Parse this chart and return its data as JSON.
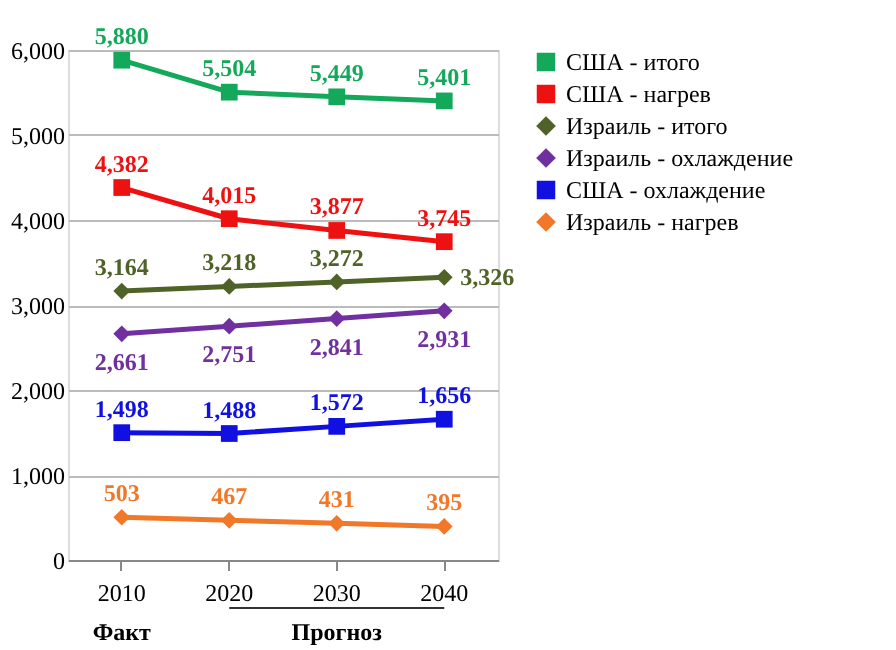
{
  "chart_data": {
    "type": "line",
    "categories": [
      "2010",
      "2020",
      "2030",
      "2040"
    ],
    "series": [
      {
        "name": "США - итого",
        "color": "#13a85a",
        "marker": "square",
        "values": [
          5880,
          5504,
          5449,
          5401
        ],
        "value_labels": [
          "5,880",
          "5,504",
          "5,449",
          "5,401"
        ]
      },
      {
        "name": "США - нагрев",
        "color": "#ee1111",
        "marker": "square",
        "values": [
          4382,
          4015,
          3877,
          3745
        ],
        "value_labels": [
          "4,382",
          "4,015",
          "3,877",
          "3,745"
        ]
      },
      {
        "name": "Израиль - итого",
        "color": "#4f6228",
        "marker": "diamond",
        "values": [
          3164,
          3218,
          3272,
          3326
        ],
        "value_labels": [
          "3,164",
          "3,218",
          "3,272",
          "3,326"
        ]
      },
      {
        "name": "Израиль - охлаждение",
        "color": "#7030a0",
        "marker": "diamond",
        "values": [
          2661,
          2751,
          2841,
          2931
        ],
        "value_labels": [
          "2,661",
          "2,751",
          "2,841",
          "2,931"
        ]
      },
      {
        "name": "США - охлаждение",
        "color": "#1010e0",
        "marker": "square",
        "values": [
          1498,
          1488,
          1572,
          1656
        ],
        "value_labels": [
          "1,498",
          "1,488",
          "1,572",
          "1,656"
        ]
      },
      {
        "name": "Израиль - нагрев",
        "color": "#f07828",
        "marker": "diamond",
        "values": [
          503,
          467,
          431,
          395
        ],
        "value_labels": [
          "503",
          "467",
          "431",
          "395"
        ]
      }
    ],
    "ylim": [
      0,
      6000
    ],
    "yticks": [
      0,
      {
        "value": 1000,
        "label": "1,000"
      },
      {
        "value": 2000,
        "label": "2,000"
      },
      {
        "value": 3000,
        "label": "3,000"
      },
      {
        "value": 4000,
        "label": "4,000"
      },
      {
        "value": 5000,
        "label": "5,000"
      },
      {
        "value": 6000,
        "label": "6,000"
      }
    ],
    "grid": "y",
    "legend": "right",
    "line_style": "solid",
    "annotations": [
      "Факт",
      "Прогноз"
    ]
  }
}
